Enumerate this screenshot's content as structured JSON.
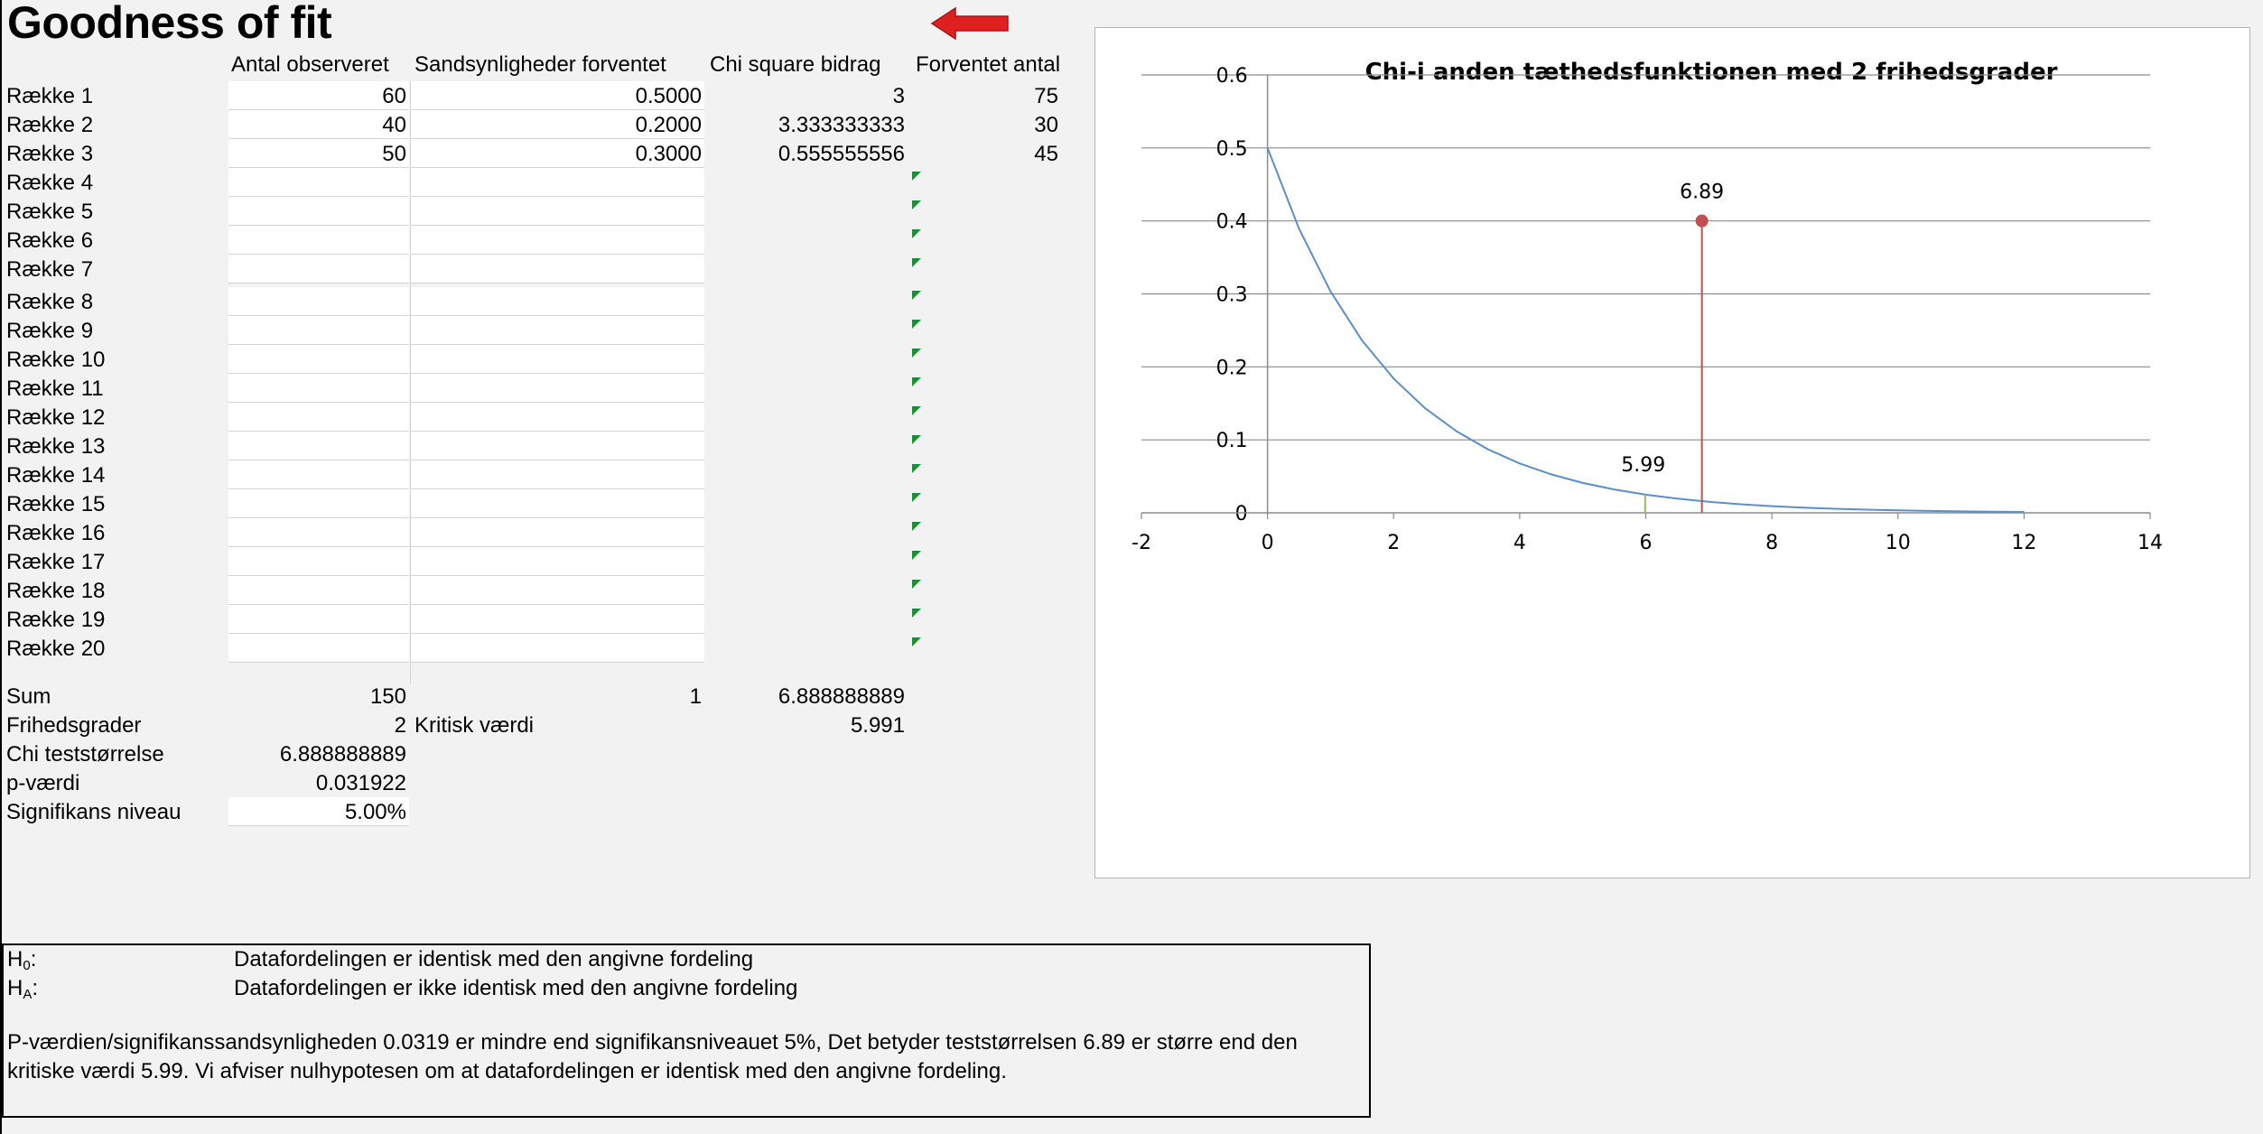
{
  "title": "Goodness of fit",
  "headers": {
    "observed": "Antal observeret",
    "probability": "Sandsynligheder forventet",
    "chi": "Chi square bidrag",
    "expected": "Forventet antal"
  },
  "rows": [
    {
      "label": "Række 1",
      "observed": "60",
      "probability": "0.5000",
      "chi": "3",
      "expected": "75"
    },
    {
      "label": "Række 2",
      "observed": "40",
      "probability": "0.2000",
      "chi": "3.333333333",
      "expected": "30"
    },
    {
      "label": "Række 3",
      "observed": "50",
      "probability": "0.3000",
      "chi": "0.555555556",
      "expected": "45"
    },
    {
      "label": "Række 4",
      "observed": "",
      "probability": "",
      "chi": "",
      "expected": ""
    },
    {
      "label": "Række 5",
      "observed": "",
      "probability": "",
      "chi": "",
      "expected": ""
    },
    {
      "label": "Række 6",
      "observed": "",
      "probability": "",
      "chi": "",
      "expected": ""
    },
    {
      "label": "Række 7",
      "observed": "",
      "probability": "",
      "chi": "",
      "expected": ""
    },
    {
      "label": "Række 8",
      "observed": "",
      "probability": "",
      "chi": "",
      "expected": ""
    },
    {
      "label": "Række 9",
      "observed": "",
      "probability": "",
      "chi": "",
      "expected": ""
    },
    {
      "label": "Række 10",
      "observed": "",
      "probability": "",
      "chi": "",
      "expected": ""
    },
    {
      "label": "Række 11",
      "observed": "",
      "probability": "",
      "chi": "",
      "expected": ""
    },
    {
      "label": "Række 12",
      "observed": "",
      "probability": "",
      "chi": "",
      "expected": ""
    },
    {
      "label": "Række 13",
      "observed": "",
      "probability": "",
      "chi": "",
      "expected": ""
    },
    {
      "label": "Række 14",
      "observed": "",
      "probability": "",
      "chi": "",
      "expected": ""
    },
    {
      "label": "Række 15",
      "observed": "",
      "probability": "",
      "chi": "",
      "expected": ""
    },
    {
      "label": "Række 16",
      "observed": "",
      "probability": "",
      "chi": "",
      "expected": ""
    },
    {
      "label": "Række 17",
      "observed": "",
      "probability": "",
      "chi": "",
      "expected": ""
    },
    {
      "label": "Række 18",
      "observed": "",
      "probability": "",
      "chi": "",
      "expected": ""
    },
    {
      "label": "Række 19",
      "observed": "",
      "probability": "",
      "chi": "",
      "expected": ""
    },
    {
      "label": "Række 20",
      "observed": "",
      "probability": "",
      "chi": "",
      "expected": ""
    }
  ],
  "summary": {
    "sum_label": "Sum",
    "sum_observed": "150",
    "sum_probability": "1",
    "sum_chi": "6.888888889",
    "df_label": "Frihedsgrader",
    "df_value": "2",
    "critical_label": "Kritisk værdi",
    "critical_value": "5.991",
    "chi_stat_label": "Chi teststørrelse",
    "chi_stat_value": "6.888888889",
    "pvalue_label": "p-værdi",
    "pvalue_value": "0.031922",
    "significance_label": "Signifikans niveau",
    "significance_value": "5.00%"
  },
  "hypothesis": {
    "h0_symbol": "H",
    "h0_sub": "0",
    "h0_text": "Datafordelingen er identisk med den angivne fordeling",
    "ha_symbol": "H",
    "ha_sub": "A",
    "ha_text": "Datafordelingen er ikke identisk med den angivne fordeling",
    "conclusion": "P-værdien/signifikanssandsynligheden 0.0319 er mindre end signifikansniveauet 5%, Det betyder teststørrelsen 6.89 er større end den kritiske værdi 5.99. Vi afviser nulhypotesen om at datafordelingen er identisk med den angivne fordeling."
  },
  "icons": {
    "arrow": "red-left-arrow-icon",
    "input_marker": "green-triangle-icon"
  },
  "colors": {
    "curve": "#5b8fc9",
    "test_statistic": "#c0504d",
    "critical": "#9bbb59",
    "gridline": "#8c8c8c",
    "arrow": "#e02020"
  },
  "chart_data": {
    "type": "line",
    "title": "Chi-i anden tæthedsfunktionen med 2 frihedsgrader",
    "xlabel": "",
    "ylabel": "",
    "xlim": [
      -2,
      14
    ],
    "ylim": [
      0,
      0.6
    ],
    "xticks": [
      -2,
      0,
      2,
      4,
      6,
      8,
      10,
      12,
      14
    ],
    "yticks": [
      0,
      0.1,
      0.2,
      0.3,
      0.4,
      0.5,
      0.6
    ],
    "grid": true,
    "legend": "none",
    "curve": {
      "x": [
        0,
        0.5,
        1,
        1.5,
        2,
        2.5,
        3,
        3.5,
        4,
        4.5,
        5,
        5.5,
        6,
        6.5,
        7,
        7.5,
        8,
        8.5,
        9,
        9.5,
        10,
        10.5,
        11,
        11.5,
        12
      ],
      "y": [
        0.5,
        0.3894,
        0.3033,
        0.2362,
        0.1839,
        0.1433,
        0.1116,
        0.0869,
        0.0677,
        0.0527,
        0.041,
        0.032,
        0.0249,
        0.0194,
        0.0151,
        0.0118,
        0.0092,
        0.0071,
        0.0056,
        0.0043,
        0.0034,
        0.0026,
        0.002,
        0.0016,
        0.0012
      ]
    },
    "test_statistic": {
      "x": 6.89,
      "y": 0.4,
      "label": "6.89"
    },
    "critical_value": {
      "x": 5.99,
      "y": 0.025,
      "label": "5.99"
    }
  }
}
